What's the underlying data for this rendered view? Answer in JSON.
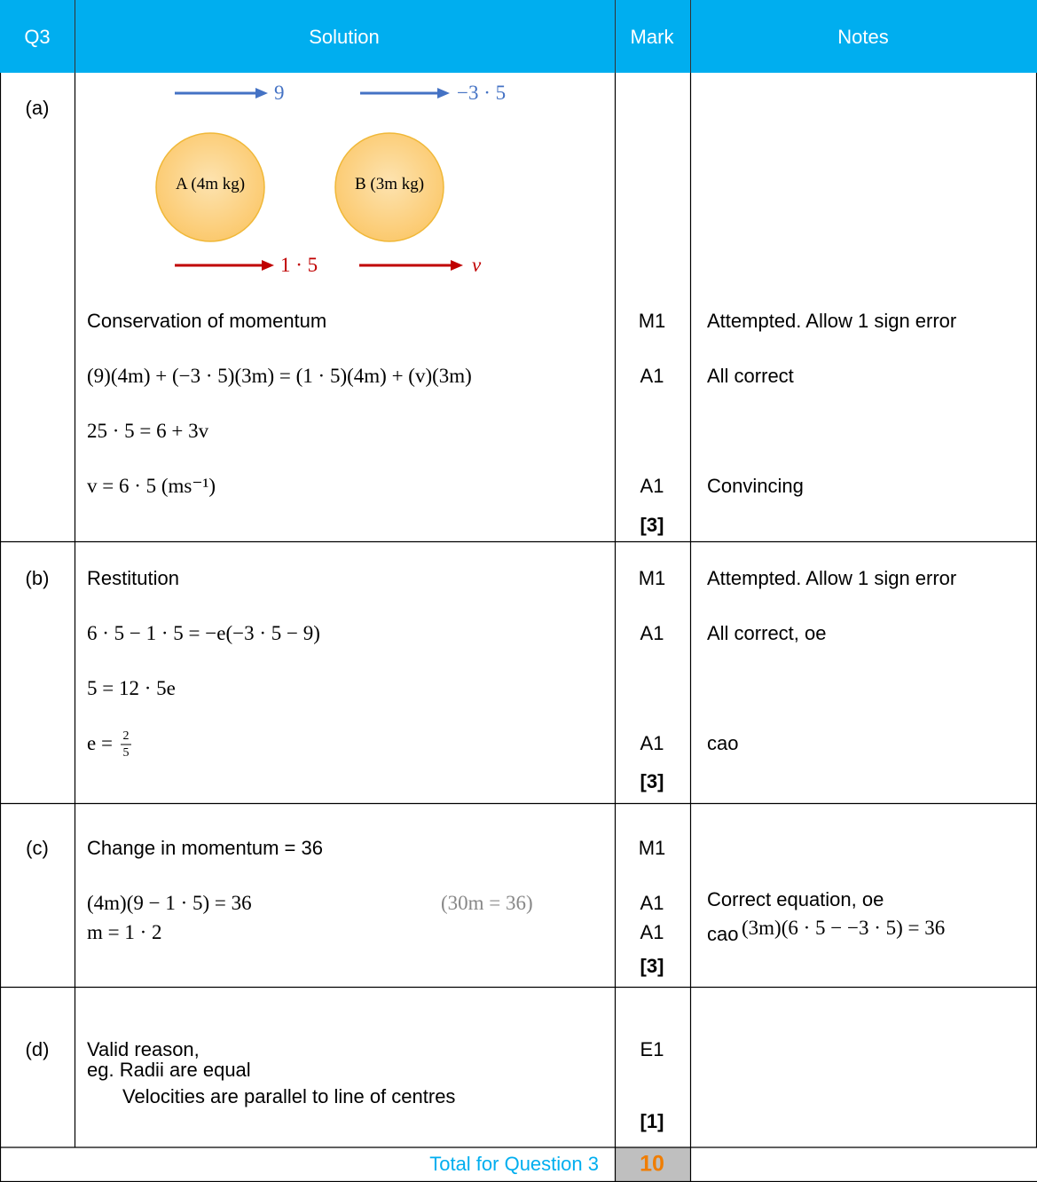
{
  "header": [
    "Q3",
    "Solution",
    "Mark",
    "Notes"
  ],
  "parts": [
    {
      "label": "(a)",
      "diagram": {
        "arrows": [
          "9",
          "−3 · 5",
          "1 · 5",
          "v"
        ],
        "particles": [
          "A (4m kg)",
          "B (3m kg)"
        ]
      },
      "rows": [
        {
          "solution": "Conservation of momentum",
          "mark": "M1",
          "note": "Attempted. Allow 1 sign error"
        },
        {
          "solution": "(9)(4m) + (−3 · 5)(3m) = (1 · 5)(4m) + (v)(3m)",
          "mark": "A1",
          "note": "All correct"
        },
        {
          "solution": "25 · 5 = 6 + 3v"
        },
        {
          "solution": "v = 6 · 5   (ms⁻¹)",
          "mark": "A1",
          "note": "Convincing"
        }
      ],
      "total": "[3]"
    },
    {
      "label": "(b)",
      "rows": [
        {
          "solution": "Restitution",
          "mark": "M1",
          "note": "Attempted. Allow 1 sign error"
        },
        {
          "solution": "6 · 5 − 1 · 5 =  −e(−3 · 5 − 9)",
          "mark": "A1",
          "note": "All correct, oe"
        },
        {
          "solution": "5 = 12 · 5e"
        },
        {
          "solution": "e =",
          "fraction": {
            "numerator": "2",
            "denominator": "5"
          },
          "mark": "A1",
          "note": "cao"
        }
      ],
      "total": "[3]"
    },
    {
      "label": "(c)",
      "rows": [
        {
          "solution": "Change in momentum = 36",
          "mark": "M1"
        },
        {
          "solution": "(4m)(9 − 1 · 5) = 36",
          "working": "(30m = 36)",
          "mark": "A1",
          "note": "Correct equation, oe",
          "note_detail": "(3m)(6 · 5 − −3 · 5) = 36"
        },
        {
          "solution": "m = 1 · 2",
          "mark": "A1",
          "note": "cao"
        }
      ],
      "total": "[3]"
    },
    {
      "label": "(d)",
      "rows": [
        {
          "solution": "Valid reason,",
          "mark": "E1"
        },
        {
          "solution": "eg. Radii are equal"
        },
        {
          "solution": "Velocities are parallel to line of centres"
        }
      ],
      "total": "[1]"
    }
  ],
  "footer": {
    "label": "Total for Question 3",
    "total": "10"
  }
}
